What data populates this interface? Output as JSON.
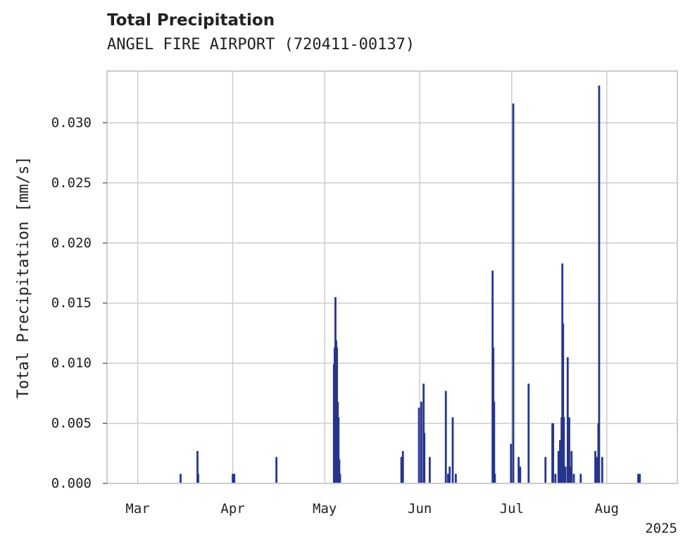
{
  "chart_data": {
    "type": "bar",
    "title": "Total Precipitation",
    "subtitle": "ANGEL FIRE AIRPORT (720411-00137)",
    "ylabel": "Total Precipitation [mm/s]",
    "xlabel": "",
    "year_label": "2025",
    "ylim": [
      0,
      0.0343
    ],
    "xlim": [
      "2025-02-19",
      "2025-08-24"
    ],
    "yticks": [
      0.0,
      0.005,
      0.01,
      0.015,
      0.02,
      0.025,
      0.03
    ],
    "ytick_labels": [
      "0.000",
      "0.005",
      "0.010",
      "0.015",
      "0.020",
      "0.025",
      "0.030"
    ],
    "xticks": [
      {
        "date": "2025-03-01",
        "label": "Mar"
      },
      {
        "date": "2025-04-01",
        "label": "Apr"
      },
      {
        "date": "2025-05-01",
        "label": "May"
      },
      {
        "date": "2025-06-01",
        "label": "Jun"
      },
      {
        "date": "2025-07-01",
        "label": "Jul"
      },
      {
        "date": "2025-08-01",
        "label": "Aug"
      }
    ],
    "grid": true,
    "colors": {
      "bar": "#26358f",
      "grid": "#cccccc",
      "axis": "#cccccc"
    },
    "series": [
      {
        "x": [
          "2025-03-15T00:00",
          "2025-03-20T12:00",
          "2025-03-20T18:00",
          "2025-04-01T00:00",
          "2025-04-01T12:00",
          "2025-04-15T06:00",
          "2025-05-04T00:00",
          "2025-05-04T06:00",
          "2025-05-04T12:00",
          "2025-05-04T18:00",
          "2025-05-05T00:00",
          "2025-05-05T06:00",
          "2025-05-05T12:00",
          "2025-05-05T18:00",
          "2025-05-06T00:00",
          "2025-05-26T00:00",
          "2025-05-26T12:00",
          "2025-05-31T18:00",
          "2025-06-01T12:00",
          "2025-06-02T06:00",
          "2025-06-02T12:00",
          "2025-06-04T06:00",
          "2025-06-09T12:00",
          "2025-06-10T06:00",
          "2025-06-10T18:00",
          "2025-06-11T18:00",
          "2025-06-12T18:00",
          "2025-06-24T18:00",
          "2025-06-25T00:00",
          "2025-06-25T06:00",
          "2025-06-25T12:00",
          "2025-06-30T18:00",
          "2025-07-01T12:00",
          "2025-07-03T06:00",
          "2025-07-03T18:00",
          "2025-07-06T12:00",
          "2025-07-12T00:00",
          "2025-07-14T06:00",
          "2025-07-14T12:00",
          "2025-07-15T06:00",
          "2025-07-16T06:00",
          "2025-07-16T18:00",
          "2025-07-17T06:00",
          "2025-07-17T12:00",
          "2025-07-17T18:00",
          "2025-07-18T00:00",
          "2025-07-18T12:00",
          "2025-07-19T06:00",
          "2025-07-19T18:00",
          "2025-07-20T00:00",
          "2025-07-20T12:00",
          "2025-07-21T06:00",
          "2025-07-23T12:00",
          "2025-07-28T06:00",
          "2025-07-28T18:00",
          "2025-07-29T06:00",
          "2025-07-29T12:00",
          "2025-07-30T12:00",
          "2025-08-11T06:00",
          "2025-08-11T18:00"
        ],
        "values": [
          0.0008,
          0.0027,
          0.0008,
          0.0008,
          0.0008,
          0.0022,
          0.0099,
          0.0113,
          0.0155,
          0.0119,
          0.0113,
          0.0068,
          0.0055,
          0.002,
          0.0008,
          0.0022,
          0.0027,
          0.0063,
          0.0068,
          0.0083,
          0.0042,
          0.0022,
          0.0077,
          0.0008,
          0.0014,
          0.0055,
          0.0008,
          0.0177,
          0.0113,
          0.0068,
          0.0008,
          0.0033,
          0.0316,
          0.0022,
          0.0014,
          0.0083,
          0.0022,
          0.005,
          0.005,
          0.0008,
          0.0027,
          0.0036,
          0.0055,
          0.0183,
          0.0133,
          0.0055,
          0.0014,
          0.0105,
          0.0055,
          0.0014,
          0.0027,
          0.0008,
          0.0008,
          0.0027,
          0.0022,
          0.005,
          0.0331,
          0.0022,
          0.0008,
          0.0008
        ]
      }
    ]
  }
}
